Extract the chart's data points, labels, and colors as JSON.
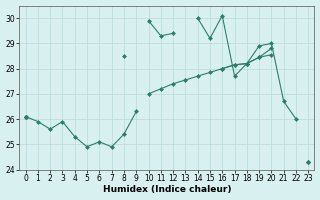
{
  "xlabel": "Humidex (Indice chaleur)",
  "x_all": [
    0,
    1,
    2,
    3,
    4,
    5,
    6,
    7,
    8,
    9,
    10,
    11,
    12,
    13,
    14,
    15,
    16,
    17,
    18,
    19,
    20,
    21,
    22,
    23
  ],
  "line_upper": [
    26.1,
    null,
    null,
    null,
    null,
    null,
    null,
    null,
    28.5,
    null,
    29.9,
    29.3,
    29.4,
    null,
    30.0,
    29.2,
    30.1,
    27.7,
    28.2,
    28.9,
    29.0,
    26.7,
    26.0,
    null
  ],
  "line_lower": [
    26.1,
    25.9,
    25.6,
    25.9,
    25.3,
    24.9,
    25.1,
    24.9,
    25.4,
    26.3,
    null,
    null,
    null,
    null,
    null,
    null,
    null,
    null,
    null,
    null,
    null,
    null,
    null,
    null
  ],
  "line_diag1": [
    26.1,
    null,
    null,
    null,
    null,
    null,
    null,
    null,
    null,
    null,
    null,
    null,
    null,
    null,
    null,
    null,
    null,
    null,
    null,
    null,
    null,
    null,
    null,
    24.3
  ],
  "line_diag2": [
    26.1,
    null,
    null,
    null,
    null,
    null,
    null,
    null,
    null,
    null,
    27.0,
    27.2,
    27.4,
    27.55,
    27.7,
    27.85,
    28.0,
    28.15,
    28.2,
    28.45,
    28.55,
    null,
    null,
    24.3
  ],
  "line_diag3": [
    26.1,
    null,
    null,
    null,
    null,
    null,
    null,
    null,
    null,
    null,
    null,
    null,
    null,
    null,
    null,
    null,
    28.0,
    28.15,
    28.2,
    28.45,
    28.8,
    null,
    null,
    24.3
  ],
  "ylim": [
    24,
    30.5
  ],
  "xlim": [
    -0.5,
    23.5
  ],
  "yticks": [
    24,
    25,
    26,
    27,
    28,
    29,
    30
  ],
  "xticks": [
    0,
    1,
    2,
    3,
    4,
    5,
    6,
    7,
    8,
    9,
    10,
    11,
    12,
    13,
    14,
    15,
    16,
    17,
    18,
    19,
    20,
    21,
    22,
    23
  ],
  "color": "#2d7d6e",
  "bg_color": "#d8f0f0",
  "grid_color": "#b8dada",
  "fig_bg": "#d8f0f0"
}
